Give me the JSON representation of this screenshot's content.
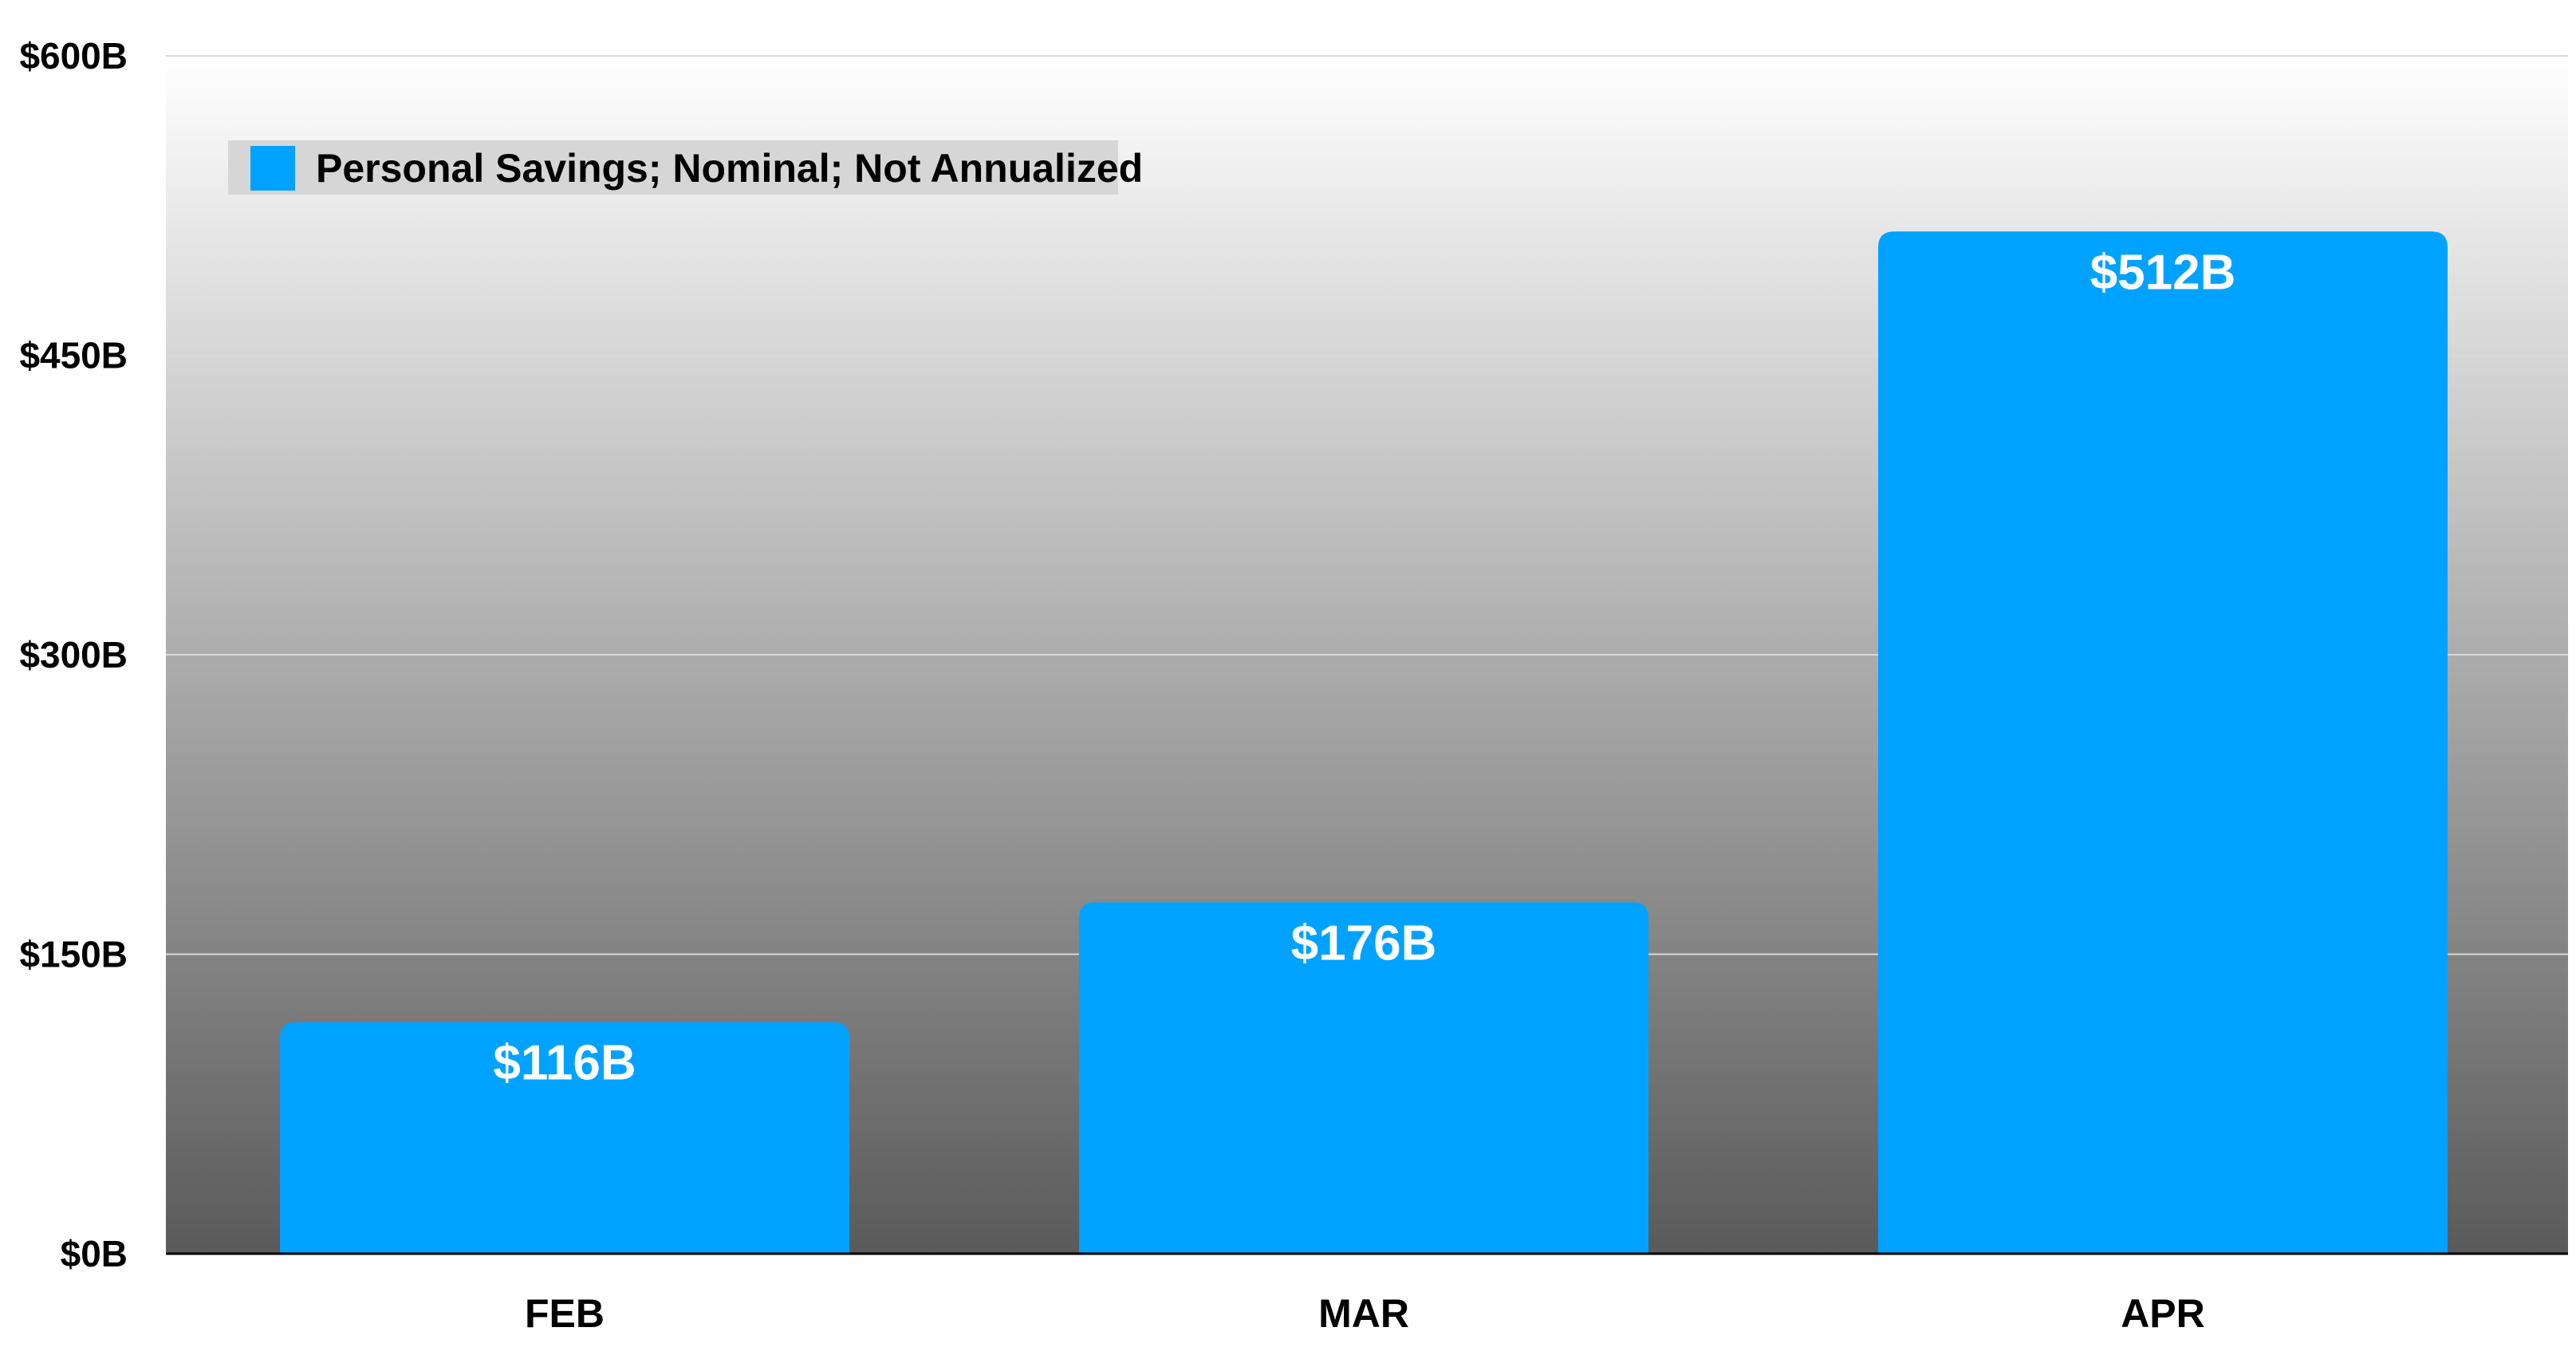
{
  "chart_data": {
    "type": "bar",
    "categories": [
      "FEB",
      "MAR",
      "APR"
    ],
    "series": [
      {
        "name": "Personal Savings; Nominal; Not Annualized",
        "values": [
          116,
          176,
          512
        ],
        "data_labels": [
          "$116B",
          "$176B",
          "$512B"
        ]
      }
    ],
    "title": "",
    "xlabel": "",
    "ylabel": "",
    "ylim": [
      0,
      600
    ],
    "yticks": [
      0,
      150,
      300,
      450,
      600
    ],
    "ytick_labels": [
      "$0B",
      "$150B",
      "$300B",
      "$450B",
      "$600B"
    ],
    "grid": true,
    "legend_position": "top-left"
  },
  "colors": {
    "bar": "#00a2ff",
    "background_top": "#ffffff",
    "background_bottom": "#5a5a5a",
    "gridline": "#d8d8d8",
    "legend_box": "#d6d6d6"
  }
}
